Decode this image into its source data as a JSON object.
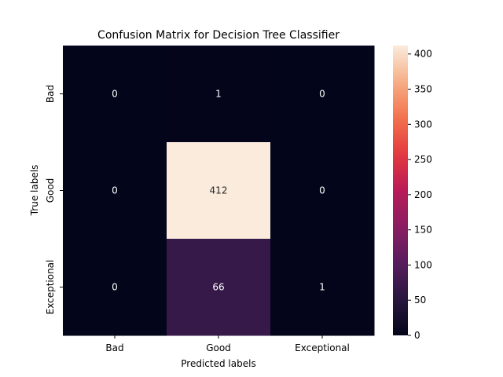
{
  "chart_data": {
    "type": "heatmap",
    "title": "Confusion Matrix for Decision Tree Classifier",
    "xlabel": "Predicted labels",
    "ylabel": "True labels",
    "x_categories": [
      "Bad",
      "Good",
      "Exceptional"
    ],
    "y_categories": [
      "Bad",
      "Good",
      "Exceptional"
    ],
    "values": [
      [
        0,
        1,
        0
      ],
      [
        0,
        412,
        0
      ],
      [
        0,
        66,
        1
      ]
    ],
    "colorbar": {
      "colormap": "rocket",
      "range": [
        0,
        412
      ],
      "ticks": [
        0,
        50,
        100,
        150,
        200,
        250,
        300,
        350,
        400
      ]
    }
  }
}
